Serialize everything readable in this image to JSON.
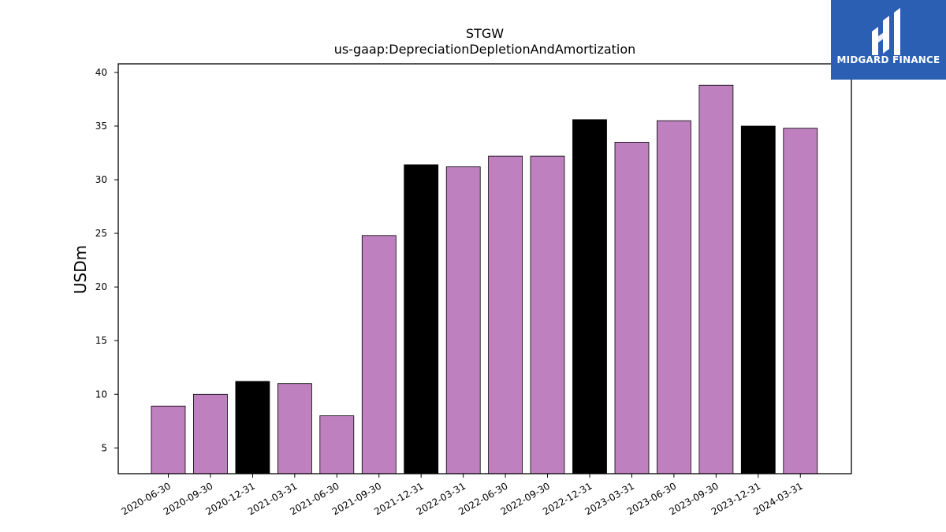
{
  "chart_data": {
    "type": "bar",
    "title": "STGW",
    "subtitle": "us-gaap:DepreciationDepletionAndAmortization",
    "xlabel": "",
    "ylabel": "USDm",
    "ylim": [
      2.6,
      40.8
    ],
    "yticks": [
      5,
      10,
      15,
      20,
      25,
      30,
      35,
      40
    ],
    "grid": false,
    "categories": [
      "2020-06-30",
      "2020-09-30",
      "2020-12-31",
      "2021-03-31",
      "2021-06-30",
      "2021-09-30",
      "2021-12-31",
      "2022-03-31",
      "2022-06-30",
      "2022-09-30",
      "2022-12-31",
      "2023-03-31",
      "2023-06-30",
      "2023-09-30",
      "2023-12-31",
      "2024-03-31"
    ],
    "values": [
      8.9,
      10.0,
      11.2,
      11.0,
      8.0,
      24.8,
      31.4,
      31.2,
      32.2,
      32.2,
      35.6,
      33.5,
      35.5,
      38.8,
      35.0,
      34.8
    ],
    "bar_colors": [
      "#bf80bf",
      "#bf80bf",
      "#000000",
      "#bf80bf",
      "#bf80bf",
      "#bf80bf",
      "#000000",
      "#bf80bf",
      "#bf80bf",
      "#bf80bf",
      "#000000",
      "#bf80bf",
      "#bf80bf",
      "#bf80bf",
      "#000000",
      "#bf80bf"
    ]
  },
  "logo": {
    "text": "MIDGARD FINANCE",
    "background": "#2b5fb4"
  }
}
